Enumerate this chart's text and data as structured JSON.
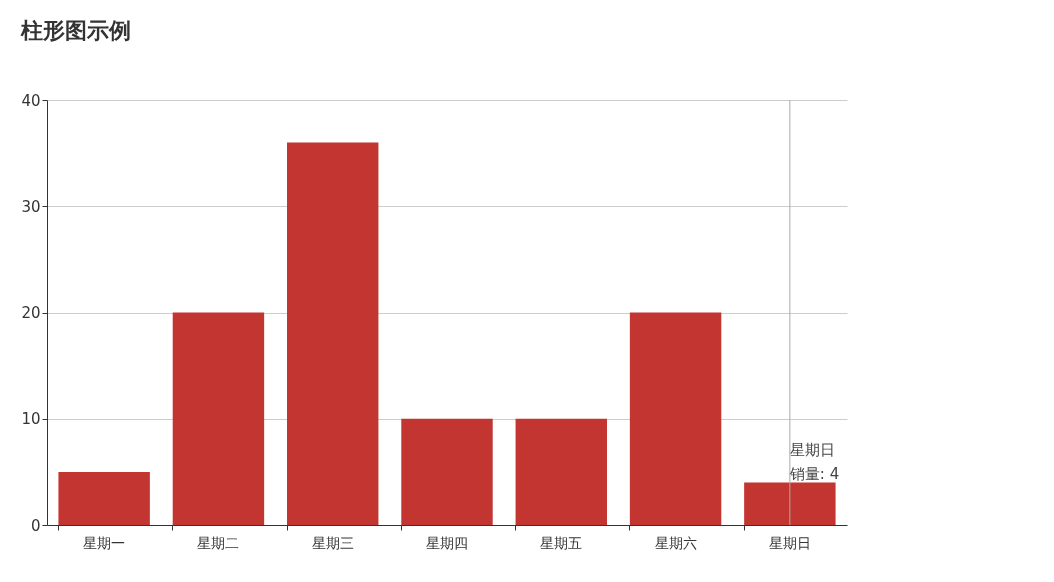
{
  "chart_data": {
    "type": "bar",
    "title": "柱形图示例",
    "categories": [
      "星期一",
      "星期二",
      "星期三",
      "星期四",
      "星期五",
      "星期六",
      "星期日"
    ],
    "series": [
      {
        "color": "#c23531",
        "values": [
          5,
          20,
          36,
          10,
          10,
          20,
          4
        ]
      }
    ],
    "ylim": [
      0,
      40
    ],
    "yticks": [
      0,
      10,
      20,
      30,
      40
    ],
    "grid": "y",
    "ref_lines": [
      {
        "axis": "x",
        "value": "星期日",
        "color": "#aaaaaa"
      }
    ],
    "annotations": [
      {
        "text": "星期日",
        "x": "星期日",
        "y": 4
      },
      {
        "text": "销量: 4",
        "x": "星期日",
        "y": 4
      }
    ]
  }
}
